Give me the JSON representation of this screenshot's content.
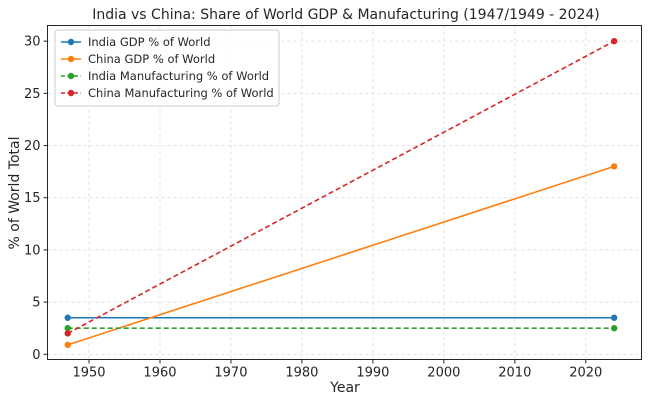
{
  "chart_data": {
    "type": "line",
    "title": "India vs China: Share of World GDP & Manufacturing (1947/1949 - 2024)",
    "xlabel": "Year",
    "ylabel": "% of World Total",
    "xlim": [
      1944.15,
      2027.85
    ],
    "ylim": [
      -0.5,
      31.5
    ],
    "xticks": [
      1950,
      1960,
      1970,
      1980,
      1990,
      2000,
      2010,
      2020
    ],
    "yticks": [
      0,
      5,
      10,
      15,
      20,
      25,
      30
    ],
    "grid": true,
    "grid_style": "dashed",
    "legend_position": "top-left",
    "series": [
      {
        "name": "India GDP % of World",
        "color": "#1f77b4",
        "linestyle": "solid",
        "marker": "circle",
        "points": [
          {
            "x": 1947,
            "y": 3.5
          },
          {
            "x": 2024,
            "y": 3.5
          }
        ]
      },
      {
        "name": "China GDP % of World",
        "color": "#ff7f0e",
        "linestyle": "solid",
        "marker": "circle",
        "points": [
          {
            "x": 1947,
            "y": 0.9
          },
          {
            "x": 2024,
            "y": 18
          }
        ]
      },
      {
        "name": "India Manufacturing % of World",
        "color": "#2ca02c",
        "linestyle": "dashed",
        "marker": "circle",
        "points": [
          {
            "x": 1947,
            "y": 2.5
          },
          {
            "x": 2024,
            "y": 2.5
          }
        ]
      },
      {
        "name": "China Manufacturing % of World",
        "color": "#d62728",
        "linestyle": "dashed",
        "marker": "circle",
        "points": [
          {
            "x": 1947,
            "y": 2
          },
          {
            "x": 2024,
            "y": 30
          }
        ]
      }
    ]
  }
}
